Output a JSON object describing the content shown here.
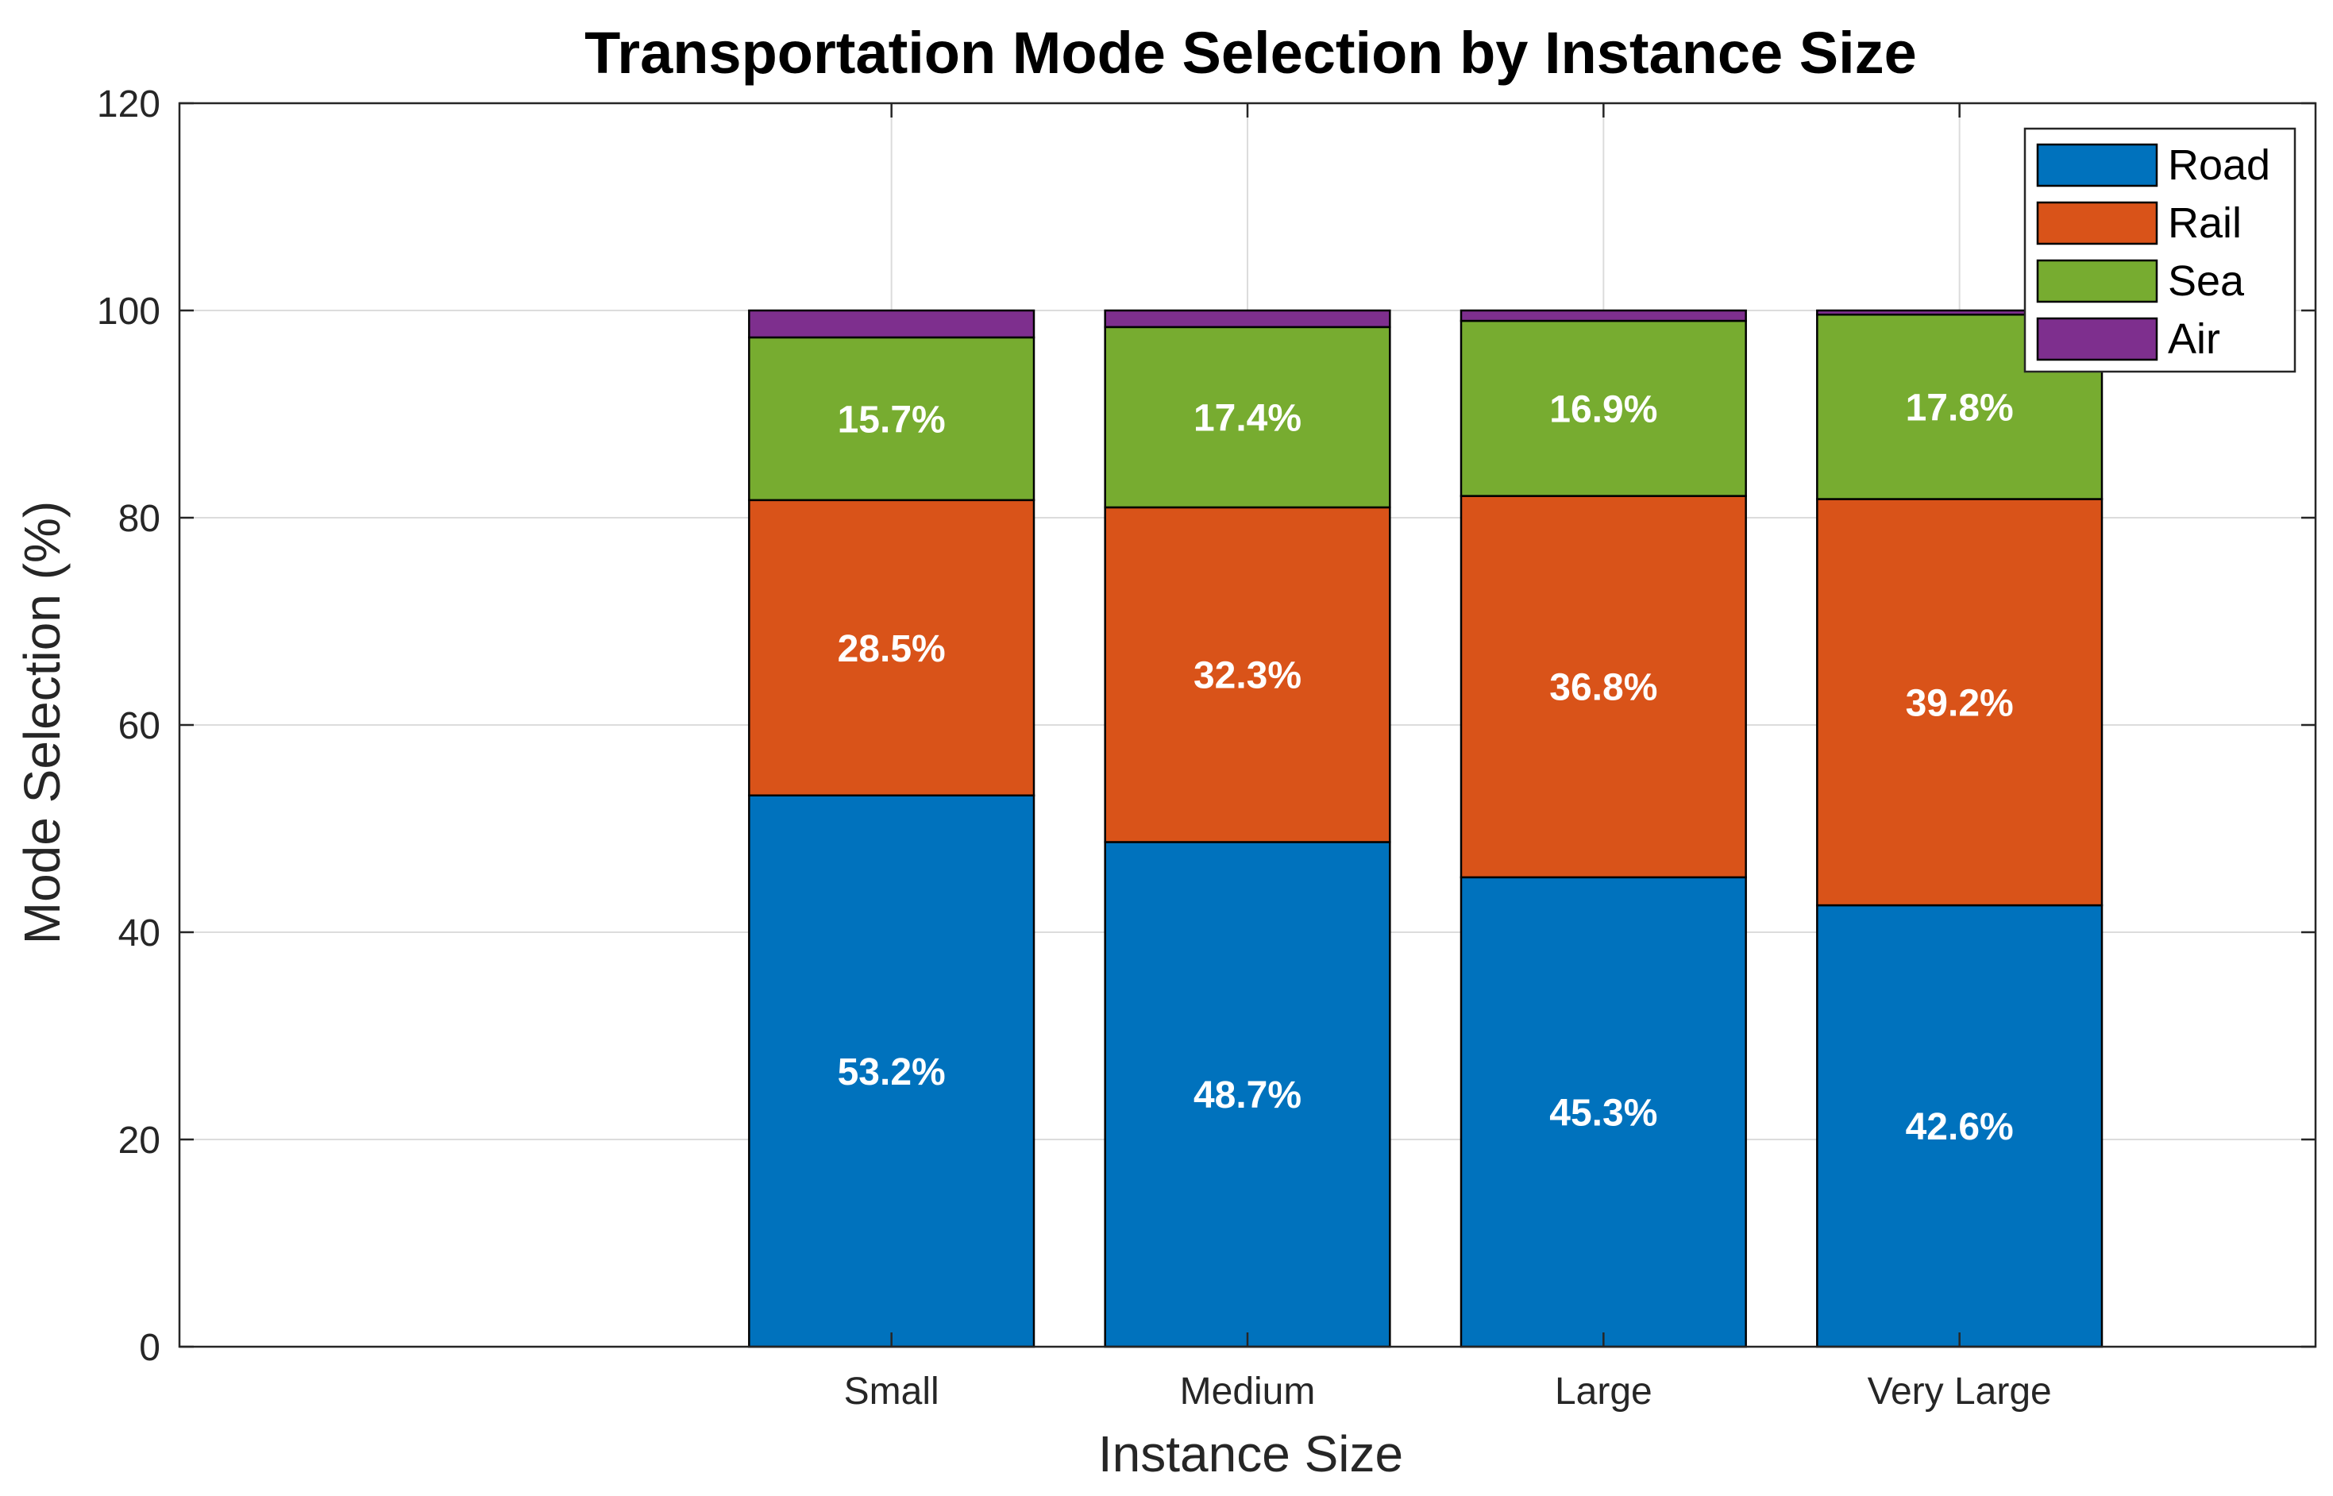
{
  "chart_data": {
    "type": "bar",
    "stacked": true,
    "title": "Transportation Mode Selection by Instance Size",
    "xlabel": "Instance Size",
    "ylabel": "Mode Selection (%)",
    "ylim": [
      0,
      120
    ],
    "yticks": [
      0,
      20,
      40,
      60,
      80,
      100,
      120
    ],
    "xlim": [
      0,
      6
    ],
    "categories": [
      "Small",
      "Medium",
      "Large",
      "Very Large"
    ],
    "grid": true,
    "legend_position": "top-right",
    "series": [
      {
        "name": "Road",
        "color": "#0072BD",
        "values": [
          53.2,
          48.7,
          45.3,
          42.6
        ],
        "labels": [
          "53.2%",
          "48.7%",
          "45.3%",
          "42.6%"
        ]
      },
      {
        "name": "Rail",
        "color": "#D95319",
        "values": [
          28.5,
          32.3,
          36.8,
          39.2
        ],
        "labels": [
          "28.5%",
          "32.3%",
          "36.8%",
          "39.2%"
        ]
      },
      {
        "name": "Sea",
        "color": "#77AC30",
        "values": [
          15.7,
          17.4,
          16.9,
          17.8
        ],
        "labels": [
          "15.7%",
          "17.4%",
          "16.9%",
          "17.8%"
        ]
      },
      {
        "name": "Air",
        "color": "#7E2F8E",
        "values": [
          2.6,
          1.6,
          1.0,
          0.4
        ]
      }
    ]
  }
}
